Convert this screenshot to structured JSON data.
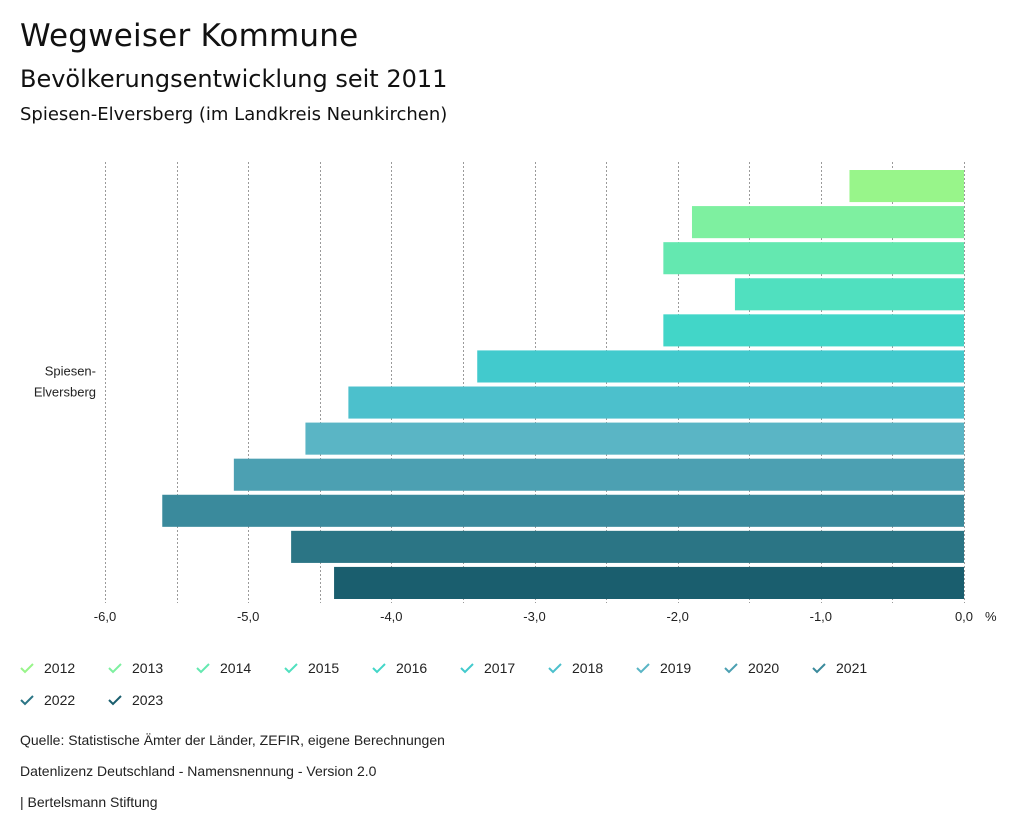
{
  "header": {
    "title": "Wegweiser Kommune",
    "subtitle": "Bevölkerungsentwicklung seit 2011",
    "region": "Spiesen-Elversberg (im Landkreis Neunkirchen)"
  },
  "chart_data": {
    "type": "bar",
    "orientation": "horizontal",
    "category_label_lines": [
      "Spiesen-",
      "Elversberg"
    ],
    "categories": [
      "Spiesen-Elversberg"
    ],
    "series": [
      {
        "name": "2012",
        "color": "#98f58a",
        "values": [
          -0.8
        ]
      },
      {
        "name": "2013",
        "color": "#7ef0a0",
        "values": [
          -1.9
        ]
      },
      {
        "name": "2014",
        "color": "#64e8b0",
        "values": [
          -2.1
        ]
      },
      {
        "name": "2015",
        "color": "#50e0bf",
        "values": [
          -1.6
        ]
      },
      {
        "name": "2016",
        "color": "#42d6c8",
        "values": [
          -2.1
        ]
      },
      {
        "name": "2017",
        "color": "#42cacd",
        "values": [
          -3.4
        ]
      },
      {
        "name": "2018",
        "color": "#4cc0cc",
        "values": [
          -4.3
        ]
      },
      {
        "name": "2019",
        "color": "#5ab5c5",
        "values": [
          -4.6
        ]
      },
      {
        "name": "2020",
        "color": "#4ca0b2",
        "values": [
          -5.1
        ]
      },
      {
        "name": "2021",
        "color": "#3a8a9c",
        "values": [
          -5.6
        ]
      },
      {
        "name": "2022",
        "color": "#2b7585",
        "values": [
          -4.7
        ]
      },
      {
        "name": "2023",
        "color": "#1a5e6e",
        "values": [
          -4.4
        ]
      }
    ],
    "xlim": [
      -6.0,
      0.0
    ],
    "tick_values": [
      -6.0,
      -5.0,
      -4.0,
      -3.0,
      -2.0,
      -1.0,
      0.0
    ],
    "tick_labels": [
      "-6,0",
      "-5,0",
      "-4,0",
      "-3,0",
      "-2,0",
      "-1,0",
      "0,0"
    ],
    "unit_label": "%",
    "grid": true
  },
  "footer": {
    "source": "Quelle: Statistische Ämter der Länder, ZEFIR, eigene Berechnungen",
    "license": "Datenlizenz Deutschland - Namensnennung - Version 2.0",
    "credit": "| Bertelsmann Stiftung"
  }
}
